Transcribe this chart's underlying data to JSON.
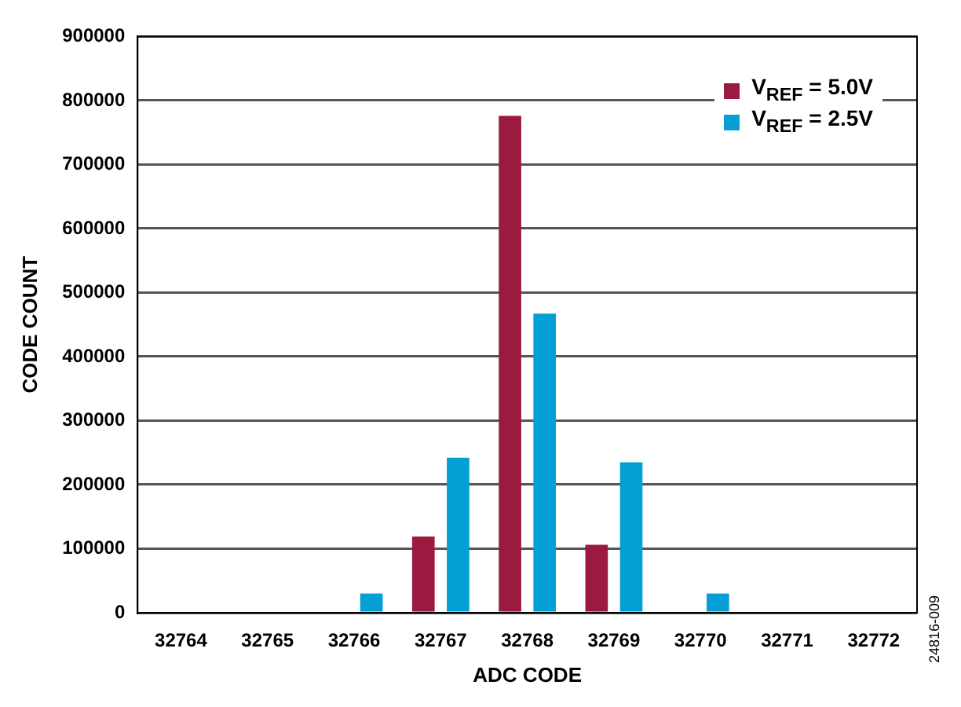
{
  "chart_data": {
    "type": "bar",
    "xlabel": "ADC CODE",
    "ylabel": "CODE COUNT",
    "categories": [
      "32764",
      "32765",
      "32766",
      "32767",
      "32768",
      "32769",
      "32770",
      "32771",
      "32772"
    ],
    "series": [
      {
        "name": "V$_{REF}$ = 5.0V",
        "color": "#9b1b40",
        "values": [
          0,
          0,
          0,
          119000,
          776000,
          106000,
          0,
          0,
          0
        ]
      },
      {
        "name": "V$_{REF}$ = 2.5V",
        "color": "#049fd4",
        "values": [
          0,
          0,
          30000,
          242000,
          467000,
          235000,
          30000,
          0,
          0
        ]
      }
    ],
    "ylim": [
      0,
      900000
    ],
    "yticks": [
      0,
      100000,
      200000,
      300000,
      400000,
      500000,
      600000,
      700000,
      800000,
      900000
    ],
    "grid": "y",
    "legend": "top right",
    "annotations": [
      "24816-009"
    ]
  }
}
